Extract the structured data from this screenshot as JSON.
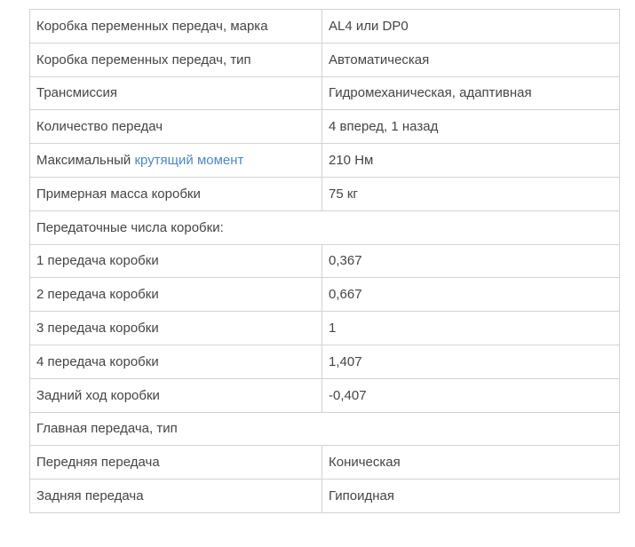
{
  "colors": {
    "border": "#d2d2d2",
    "text": "#454545",
    "link": "#4d87c6",
    "background": "#ffffff"
  },
  "table": {
    "rows": [
      {
        "type": "spec",
        "label": "Коробка переменных передач, марка",
        "value": "AL4 или DP0"
      },
      {
        "type": "spec",
        "label": "Коробка переменных передач, тип",
        "value": "Автоматическая"
      },
      {
        "type": "spec",
        "label": "Трансмиссия",
        "value": "Гидромеханическая, адаптивная"
      },
      {
        "type": "spec",
        "label": "Количество передач",
        "value": "4 вперед, 1 назад"
      },
      {
        "type": "spec",
        "label_prefix": "Максимальный ",
        "label_link": "крутящий момент",
        "value": "210 Нм"
      },
      {
        "type": "spec",
        "label": "Примерная масса коробки",
        "value": "75 кг"
      },
      {
        "type": "section",
        "label": "Передаточные числа коробки:"
      },
      {
        "type": "spec",
        "label": "1 передача коробки",
        "value": "0,367"
      },
      {
        "type": "spec",
        "label": "2 передача коробки",
        "value": "0,667"
      },
      {
        "type": "spec",
        "label": "3 передача коробки",
        "value": "1"
      },
      {
        "type": "spec",
        "label": "4 передача коробки",
        "value": "1,407"
      },
      {
        "type": "spec",
        "label": "Задний ход коробки",
        "value": "-0,407"
      },
      {
        "type": "section",
        "label": "Главная передача, тип"
      },
      {
        "type": "spec",
        "label": "Передняя передача",
        "value": "Коническая"
      },
      {
        "type": "spec",
        "label": "Задняя передача",
        "value": "Гипоидная"
      }
    ]
  }
}
